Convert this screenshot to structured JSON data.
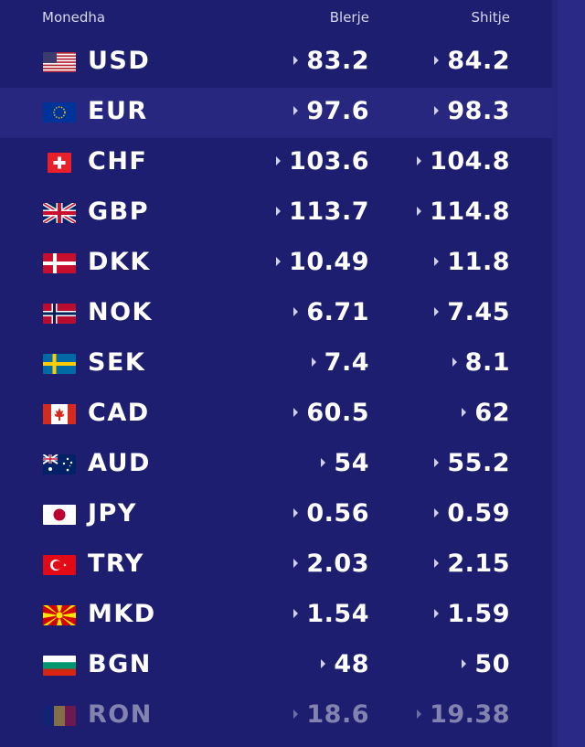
{
  "header": {
    "currency": "Monedha",
    "buy": "Blerje",
    "sell": "Shitje"
  },
  "rows": [
    {
      "code": "USD",
      "buy": "83.2",
      "sell": "84.2",
      "flag_icon": "us-flag-icon"
    },
    {
      "code": "EUR",
      "buy": "97.6",
      "sell": "98.3",
      "flag_icon": "eu-flag-icon"
    },
    {
      "code": "CHF",
      "buy": "103.6",
      "sell": "104.8",
      "flag_icon": "ch-flag-icon"
    },
    {
      "code": "GBP",
      "buy": "113.7",
      "sell": "114.8",
      "flag_icon": "gb-flag-icon"
    },
    {
      "code": "DKK",
      "buy": "10.49",
      "sell": "11.8",
      "flag_icon": "dk-flag-icon"
    },
    {
      "code": "NOK",
      "buy": "6.71",
      "sell": "7.45",
      "flag_icon": "no-flag-icon"
    },
    {
      "code": "SEK",
      "buy": "7.4",
      "sell": "8.1",
      "flag_icon": "se-flag-icon"
    },
    {
      "code": "CAD",
      "buy": "60.5",
      "sell": "62",
      "flag_icon": "ca-flag-icon"
    },
    {
      "code": "AUD",
      "buy": "54",
      "sell": "55.2",
      "flag_icon": "au-flag-icon"
    },
    {
      "code": "JPY",
      "buy": "0.56",
      "sell": "0.59",
      "flag_icon": "jp-flag-icon"
    },
    {
      "code": "TRY",
      "buy": "2.03",
      "sell": "2.15",
      "flag_icon": "tr-flag-icon"
    },
    {
      "code": "MKD",
      "buy": "1.54",
      "sell": "1.59",
      "flag_icon": "mk-flag-icon"
    },
    {
      "code": "BGN",
      "buy": "48",
      "sell": "50",
      "flag_icon": "bg-flag-icon"
    },
    {
      "code": "RON",
      "buy": "18.6",
      "sell": "19.38",
      "flag_icon": "ro-flag-icon"
    }
  ],
  "colors": {
    "background": "#1e1e70",
    "highlight_row": "#27277f",
    "text": "#ffffff",
    "header_text": "#d7d7ee"
  }
}
